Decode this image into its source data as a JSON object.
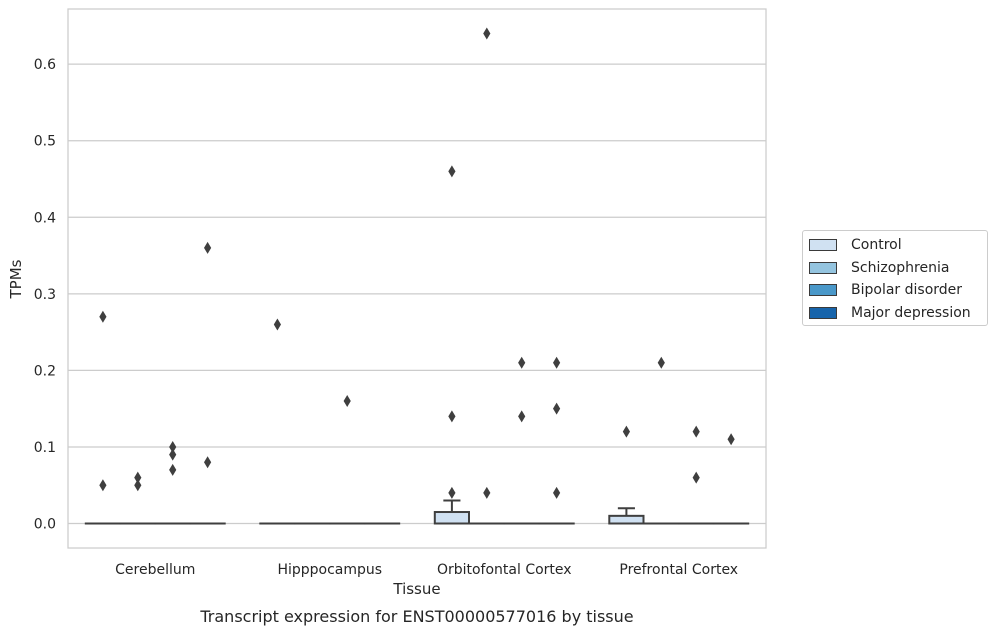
{
  "chart_data": {
    "type": "box",
    "title": "Transcript expression for ENST00000577016 by tissue",
    "xlabel": "Tissue",
    "ylabel": "TPMs",
    "categories": [
      "Cerebellum",
      "Hipppocampus",
      "Orbitofontal Cortex",
      "Prefrontal Cortex"
    ],
    "ylim": [
      -0.032,
      0.672
    ],
    "yticks": [
      "0.0",
      "0.1",
      "0.2",
      "0.3",
      "0.4",
      "0.5",
      "0.6"
    ],
    "ytick_values": [
      0.0,
      0.1,
      0.2,
      0.3,
      0.4,
      0.5,
      0.6
    ],
    "grid": true,
    "legend_position": "right",
    "series": [
      {
        "name": "Control",
        "color": "#d0e1f2",
        "boxes": [
          {
            "q1": 0,
            "median": 0,
            "q3": 0,
            "whisker_low": 0,
            "whisker_high": 0
          },
          {
            "q1": 0,
            "median": 0,
            "q3": 0,
            "whisker_low": 0,
            "whisker_high": 0
          },
          {
            "q1": 0,
            "median": 0,
            "q3": 0.015,
            "whisker_low": 0,
            "whisker_high": 0.03
          },
          {
            "q1": 0,
            "median": 0,
            "q3": 0.01,
            "whisker_low": 0,
            "whisker_high": 0.02
          }
        ],
        "outliers": [
          [
            0.27,
            0.05
          ],
          [
            0.26
          ],
          [
            0.46,
            0.14,
            0.04
          ],
          [
            0.12
          ]
        ]
      },
      {
        "name": "Schizophrenia",
        "color": "#94c4df",
        "boxes": [
          {
            "q1": 0,
            "median": 0,
            "q3": 0,
            "whisker_low": 0,
            "whisker_high": 0
          },
          {
            "q1": 0,
            "median": 0,
            "q3": 0,
            "whisker_low": 0,
            "whisker_high": 0
          },
          {
            "q1": 0,
            "median": 0,
            "q3": 0,
            "whisker_low": 0,
            "whisker_high": 0
          },
          {
            "q1": 0,
            "median": 0,
            "q3": 0,
            "whisker_low": 0,
            "whisker_high": 0
          }
        ],
        "outliers": [
          [
            0.06,
            0.05
          ],
          [],
          [
            0.64,
            0.04
          ],
          [
            0.21
          ]
        ]
      },
      {
        "name": "Bipolar disorder",
        "color": "#4a98c9",
        "boxes": [
          {
            "q1": 0,
            "median": 0,
            "q3": 0,
            "whisker_low": 0,
            "whisker_high": 0
          },
          {
            "q1": 0,
            "median": 0,
            "q3": 0,
            "whisker_low": 0,
            "whisker_high": 0
          },
          {
            "q1": 0,
            "median": 0,
            "q3": 0,
            "whisker_low": 0,
            "whisker_high": 0
          },
          {
            "q1": 0,
            "median": 0,
            "q3": 0,
            "whisker_low": 0,
            "whisker_high": 0
          }
        ],
        "outliers": [
          [
            0.1,
            0.09,
            0.07
          ],
          [
            0.16
          ],
          [
            0.21,
            0.14
          ],
          [
            0.12,
            0.06
          ]
        ]
      },
      {
        "name": "Major depression",
        "color": "#1764ab",
        "boxes": [
          {
            "q1": 0,
            "median": 0,
            "q3": 0,
            "whisker_low": 0,
            "whisker_high": 0
          },
          {
            "q1": 0,
            "median": 0,
            "q3": 0,
            "whisker_low": 0,
            "whisker_high": 0
          },
          {
            "q1": 0,
            "median": 0,
            "q3": 0,
            "whisker_low": 0,
            "whisker_high": 0
          },
          {
            "q1": 0,
            "median": 0,
            "q3": 0,
            "whisker_low": 0,
            "whisker_high": 0
          }
        ],
        "outliers": [
          [
            0.36,
            0.08
          ],
          [],
          [
            0.21,
            0.15,
            0.04
          ],
          [
            0.11
          ]
        ]
      }
    ]
  }
}
